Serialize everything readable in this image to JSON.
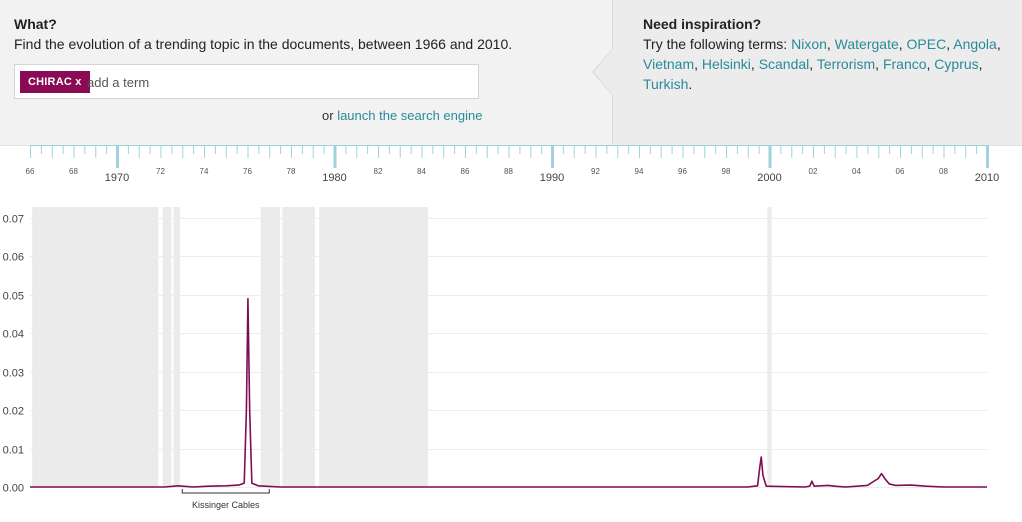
{
  "what": {
    "heading": "What?",
    "text": "Find the evolution of a trending topic in the documents, between 1966 and 2010.",
    "tag": "CHIRAC x",
    "placeholder": "add a term",
    "launch_prefix": "or",
    "launch_link": "launch the search engine"
  },
  "inspiration": {
    "heading": "Need inspiration?",
    "prefix": "Try the following terms:",
    "terms": [
      "Nixon",
      "Watergate",
      "OPEC",
      "Angola",
      "Vietnam",
      "Helsinki",
      "Scandal",
      "Terrorism",
      "Franco",
      "Cyprus",
      "Turkish"
    ]
  },
  "colors": {
    "series": "#7d0e52",
    "tag_bg": "#8a0a55",
    "link": "#2a8a9a",
    "timeline_tick": "#9ed3dc",
    "shading": "#ebebeb"
  },
  "chart_data": {
    "type": "line",
    "xlim": [
      1966,
      2010
    ],
    "ylim": [
      0,
      0.07
    ],
    "y_ticks": [
      "0.00",
      "0.01",
      "0.02",
      "0.03",
      "0.04",
      "0.05",
      "0.06",
      "0.07"
    ],
    "x_decade_labels": [
      "1970",
      "1980",
      "1990",
      "2000",
      "2010"
    ],
    "x_minor_labels": [
      "66",
      "68",
      "72",
      "74",
      "76",
      "78",
      "82",
      "84",
      "86",
      "88",
      "92",
      "94",
      "96",
      "98",
      "02",
      "04",
      "06",
      "08"
    ],
    "grid": true,
    "shaded_periods": [
      [
        1966.1,
        1966.8
      ],
      [
        1966.8,
        1971.9
      ],
      [
        1972.1,
        1972.5
      ],
      [
        1972.6,
        1972.9
      ],
      [
        1976.6,
        1977.5
      ],
      [
        1977.6,
        1979.1
      ],
      [
        1979.3,
        1984.3
      ],
      [
        1999.9,
        2000.1
      ]
    ],
    "series": [
      {
        "values": [
          [
            1966,
            0.0
          ],
          [
            1972.2,
            0.0
          ],
          [
            1972.8,
            0.0003
          ],
          [
            1973.5,
            0.0
          ],
          [
            1974.2,
            0.0002
          ],
          [
            1975.0,
            0.0003
          ],
          [
            1975.6,
            0.0005
          ],
          [
            1975.85,
            0.001
          ],
          [
            1975.95,
            0.02
          ],
          [
            1976.02,
            0.049
          ],
          [
            1976.1,
            0.02
          ],
          [
            1976.2,
            0.001
          ],
          [
            1976.5,
            0.0003
          ],
          [
            1977.5,
            0.0
          ],
          [
            1999.0,
            0.0
          ],
          [
            1999.3,
            0.0002
          ],
          [
            1999.45,
            0.0003
          ],
          [
            1999.55,
            0.005
          ],
          [
            1999.62,
            0.0078
          ],
          [
            1999.7,
            0.003
          ],
          [
            1999.85,
            0.0002
          ],
          [
            2001.6,
            0.0
          ],
          [
            2001.85,
            0.0002
          ],
          [
            2001.95,
            0.0015
          ],
          [
            2002.05,
            0.0002
          ],
          [
            2002.7,
            0.0004
          ],
          [
            2003.0,
            0.0002
          ],
          [
            2003.5,
            0.0
          ],
          [
            2004.5,
            0.0004
          ],
          [
            2004.8,
            0.0015
          ],
          [
            2005.0,
            0.0022
          ],
          [
            2005.15,
            0.0035
          ],
          [
            2005.3,
            0.0022
          ],
          [
            2005.5,
            0.0008
          ],
          [
            2005.8,
            0.0004
          ],
          [
            2006.5,
            0.0005
          ],
          [
            2007.2,
            0.0002
          ],
          [
            2008.0,
            0.0
          ],
          [
            2010.0,
            0.0
          ]
        ]
      }
    ],
    "annotations": [
      {
        "label": "Kissinger Cables",
        "x_start": 1973.0,
        "x_end": 1977.0
      }
    ]
  }
}
